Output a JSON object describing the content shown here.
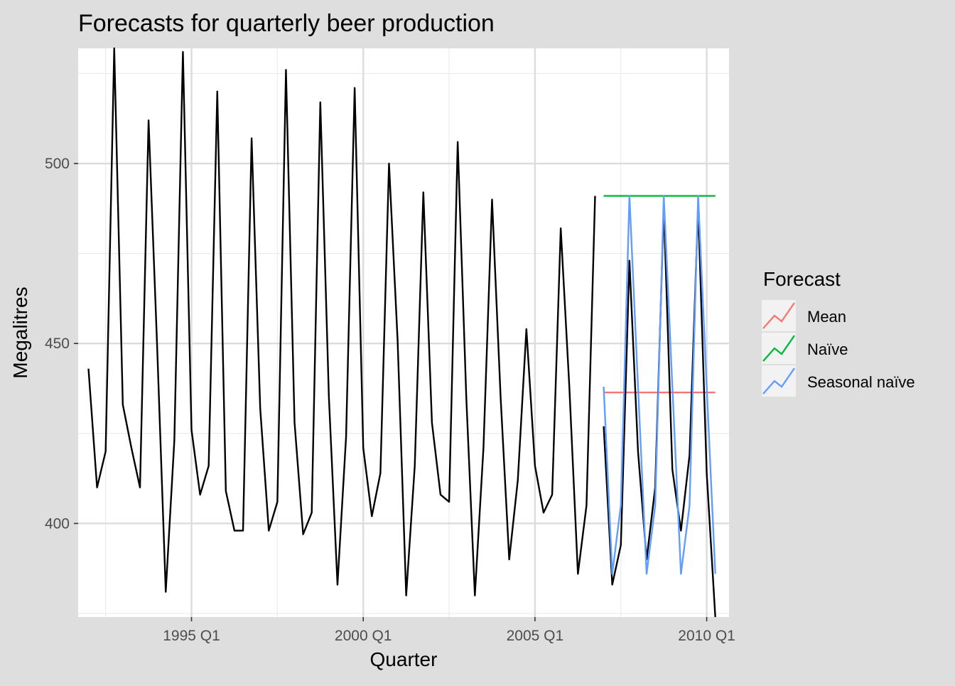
{
  "chart_data": {
    "type": "line",
    "title": "Forecasts for quarterly beer production",
    "xlabel": "Quarter",
    "ylabel": "Megalitres",
    "xlim": [
      1991.7,
      2010.65
    ],
    "ylim": [
      374,
      532
    ],
    "x_ticks": [
      {
        "value": 1995,
        "label": "1995 Q1"
      },
      {
        "value": 2000,
        "label": "2000 Q1"
      },
      {
        "value": 2005,
        "label": "2005 Q1"
      },
      {
        "value": 2010,
        "label": "2010 Q1"
      }
    ],
    "y_ticks": [
      {
        "value": 400,
        "label": "400"
      },
      {
        "value": 450,
        "label": "450"
      },
      {
        "value": 500,
        "label": "500"
      }
    ],
    "grid": true,
    "legend": {
      "title": "Forecast",
      "placement": "right",
      "entries": [
        {
          "label": "Mean",
          "color": "#F8766D"
        },
        {
          "label": "Naïve",
          "color": "#00BA38"
        },
        {
          "label": "Seasonal naïve",
          "color": "#619CFF"
        }
      ]
    },
    "actual": {
      "color": "#000000",
      "start": 1992.0,
      "step": 0.25,
      "values": [
        443,
        410,
        420,
        532,
        433,
        421,
        410,
        512,
        449,
        381,
        423,
        531,
        426,
        408,
        416,
        520,
        409,
        398,
        398,
        507,
        432,
        398,
        406,
        526,
        428,
        397,
        403,
        517,
        435,
        383,
        424,
        521,
        421,
        402,
        414,
        500,
        451,
        380,
        416,
        492,
        428,
        408,
        406,
        506,
        435,
        380,
        421,
        490,
        435,
        390,
        412,
        454,
        416,
        403,
        408,
        482,
        438,
        386,
        405,
        491
      ]
    },
    "test": {
      "color": "#000000",
      "start": 2007.0,
      "step": 0.25,
      "values": [
        427,
        383,
        394,
        473,
        420,
        390,
        410,
        488,
        415,
        398,
        419,
        488,
        414,
        374
      ]
    },
    "forecasts": {
      "start": 2007.0,
      "step": 0.25,
      "mean": [
        436.4,
        436.4,
        436.4,
        436.4,
        436.4,
        436.4,
        436.4,
        436.4,
        436.4,
        436.4,
        436.4,
        436.4,
        436.4,
        436.4
      ],
      "naive": [
        491,
        491,
        491,
        491,
        491,
        491,
        491,
        491,
        491,
        491,
        491,
        491,
        491,
        491
      ],
      "seasonal_naive": [
        438,
        386,
        405,
        491,
        438,
        386,
        405,
        491,
        438,
        386,
        405,
        491,
        438,
        386
      ]
    }
  }
}
